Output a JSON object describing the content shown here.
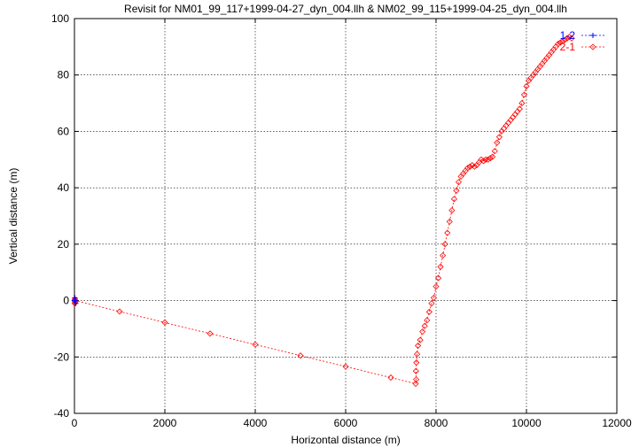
{
  "chart_data": {
    "type": "line",
    "title": "Revisit for NM01_99_117+1999-04-27_dyn_004.llh & NM02_99_115+1999-04-25_dyn_004.llh",
    "xlabel": "Horizontal distance (m)",
    "ylabel": "Vertical distance (m)",
    "xlim": [
      0,
      12000
    ],
    "ylim": [
      -40,
      100
    ],
    "xticks": [
      0,
      2000,
      4000,
      6000,
      8000,
      10000,
      12000
    ],
    "yticks": [
      -40,
      -20,
      0,
      20,
      40,
      60,
      80,
      100
    ],
    "grid": true,
    "legend_position": "top-right",
    "series": [
      {
        "name": "1-2",
        "color": "#0000ff",
        "marker": "plus",
        "x": [
          0,
          10,
          20,
          30
        ],
        "y": [
          0,
          1,
          0,
          -1
        ]
      },
      {
        "name": "2-1",
        "color": "#ff0000",
        "marker": "diamond",
        "x": [
          0,
          5,
          10,
          15,
          20,
          1000,
          2000,
          3000,
          4000,
          5000,
          6000,
          7000,
          7550,
          7560,
          7555,
          7565,
          7580,
          7600,
          7650,
          7700,
          7750,
          7800,
          7850,
          7900,
          7950,
          8000,
          8050,
          8100,
          8150,
          8200,
          8250,
          8300,
          8350,
          8400,
          8450,
          8500,
          8550,
          8600,
          8650,
          8700,
          8750,
          8800,
          8850,
          8900,
          8950,
          9000,
          9050,
          9100,
          9150,
          9200,
          9250,
          9300,
          9350,
          9400,
          9450,
          9500,
          9550,
          9600,
          9650,
          9700,
          9750,
          9800,
          9850,
          9900,
          9950,
          10000,
          10050,
          10100,
          10150,
          10200,
          10250,
          10300,
          10350,
          10400,
          10450,
          10500,
          10550,
          10600,
          10650,
          10700,
          10750,
          10800,
          10850,
          10900,
          10950,
          11000
        ],
        "y": [
          0,
          -1,
          0.5,
          -0.5,
          0,
          -3.9,
          -7.8,
          -11.7,
          -15.6,
          -19.5,
          -23.4,
          -27.3,
          -29.5,
          -28,
          -25,
          -22,
          -19,
          -16,
          -14,
          -11,
          -9,
          -7,
          -4,
          -1,
          1,
          5,
          8,
          12,
          16,
          20,
          24,
          28,
          32,
          36,
          39,
          42,
          44,
          45,
          46,
          47,
          47.5,
          48,
          47.5,
          48,
          49,
          50,
          49.5,
          50,
          50,
          50.5,
          51,
          53,
          56,
          58,
          60,
          61,
          62,
          63,
          64,
          65,
          66,
          67,
          68,
          70,
          73,
          76,
          78,
          79,
          80,
          81,
          82,
          83,
          84,
          85,
          86,
          87,
          88,
          89,
          90,
          91,
          91.5,
          92,
          92.5,
          93,
          93.5,
          93
        ],
        "comment_none": ""
      }
    ]
  }
}
